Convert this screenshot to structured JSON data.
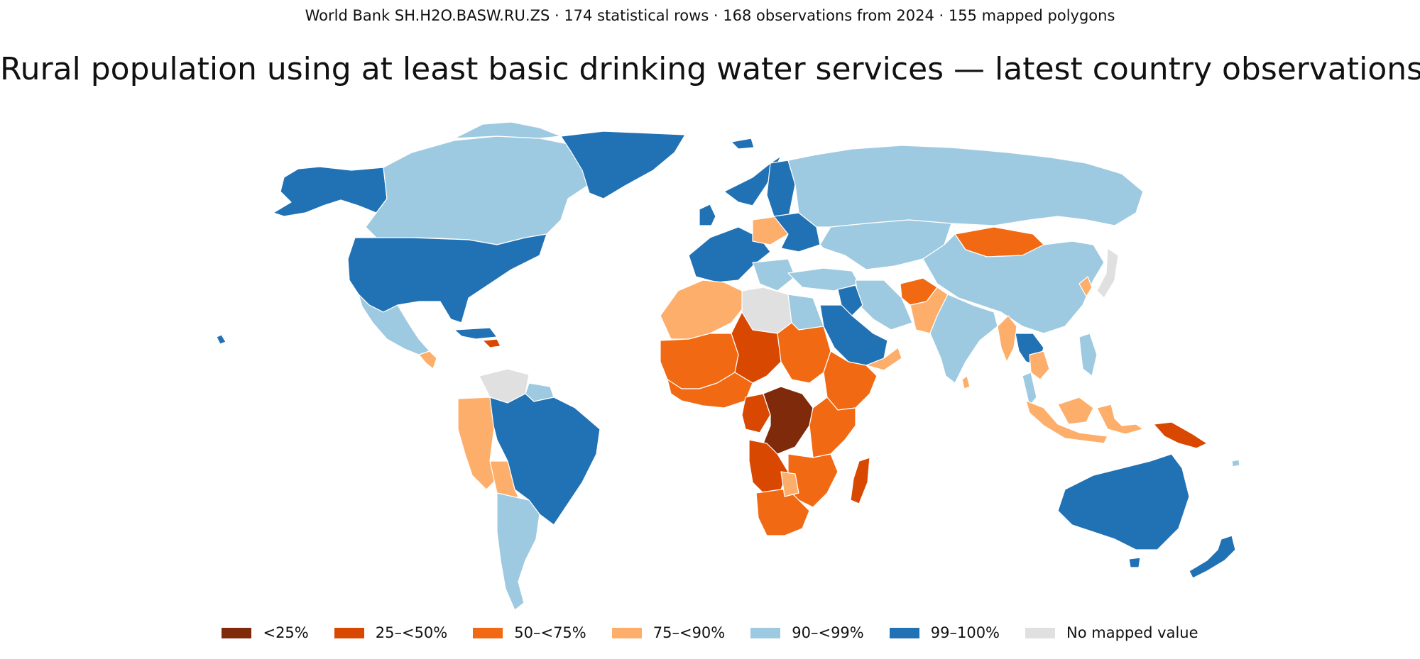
{
  "header": {
    "subtitle": "World Bank SH.H2O.BASW.RU.ZS · 174 statistical rows · 168 observations from 2024 · 155 mapped polygons",
    "title": "Rural population using at least basic drinking water services — latest country observations"
  },
  "map": {
    "indicator": "SH.H2O.BASW.RU.ZS",
    "classes": {
      "c0": "#7f2a0a",
      "c1": "#d94801",
      "c2": "#f16913",
      "c3": "#fdae6b",
      "c4": "#9ecae1",
      "c5": "#2171b5",
      "nd": "#e0e0e0"
    }
  },
  "legend": {
    "items": [
      {
        "label": "<25%",
        "color": "#7f2a0a"
      },
      {
        "label": "25–<50%",
        "color": "#d94801"
      },
      {
        "label": "50–<75%",
        "color": "#f16913"
      },
      {
        "label": "75–<90%",
        "color": "#fdae6b"
      },
      {
        "label": "90–<99%",
        "color": "#9ecae1"
      },
      {
        "label": "99–100%",
        "color": "#2171b5"
      },
      {
        "label": "No mapped value",
        "color": "#e0e0e0"
      }
    ]
  }
}
